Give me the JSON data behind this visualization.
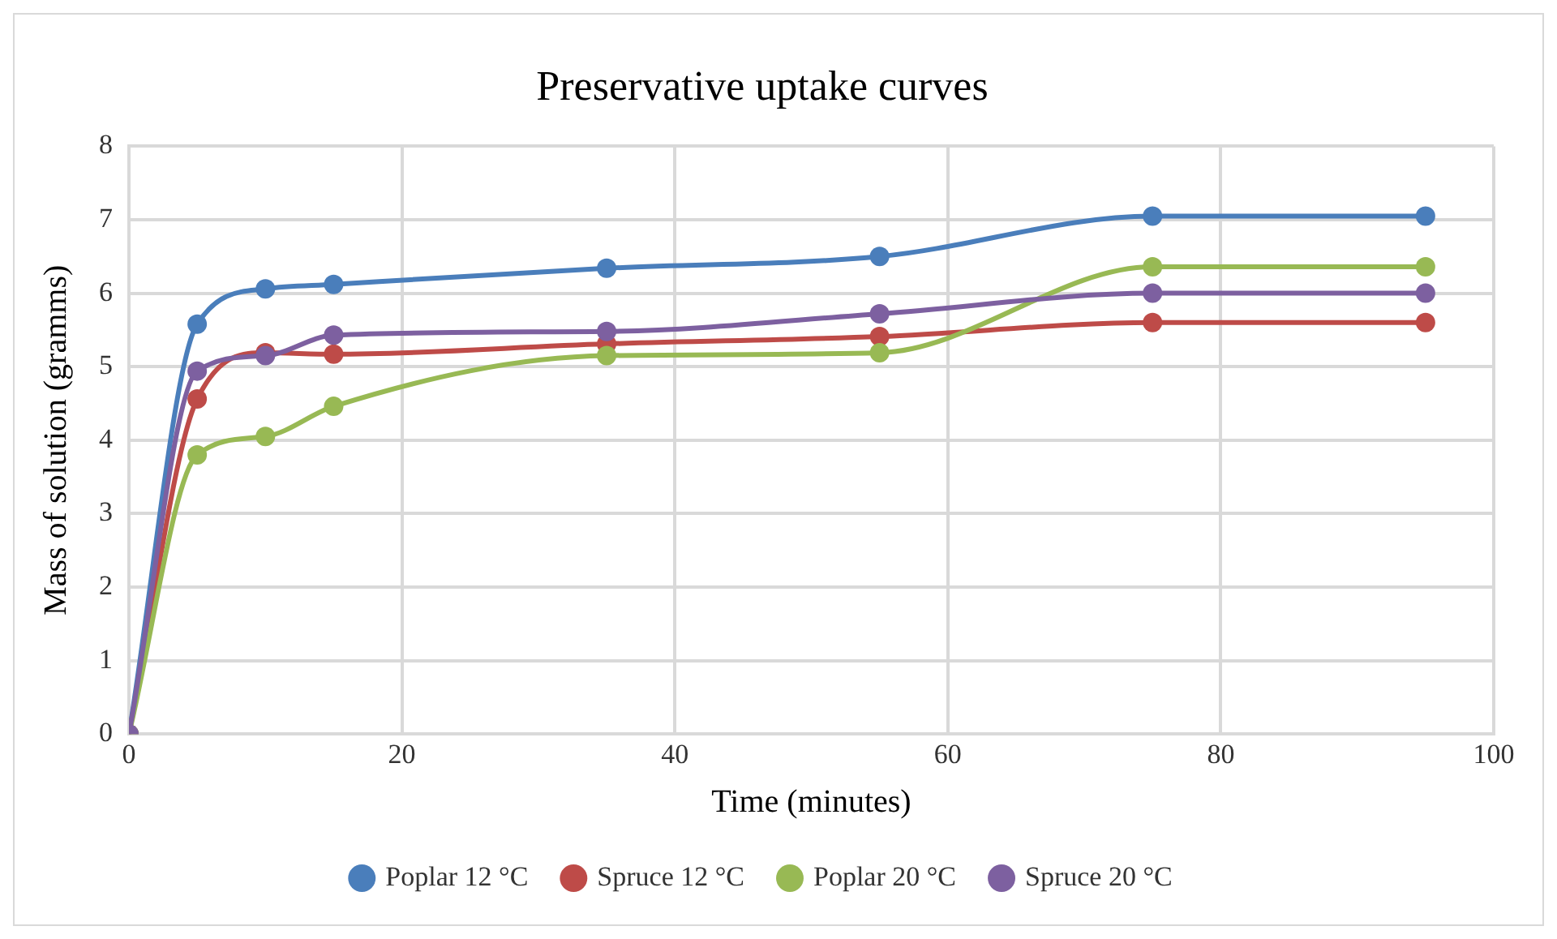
{
  "chart_data": {
    "type": "line",
    "title": "Preservative uptake curves",
    "xlabel": "Time (minutes)",
    "ylabel": "Mass of solution (gramms)",
    "x": [
      0,
      5,
      10,
      15,
      35,
      55,
      75,
      95
    ],
    "series": [
      {
        "name": "Poplar 12 °C",
        "color": "#4a7ebb",
        "values": [
          0,
          5.58,
          6.06,
          6.12,
          6.34,
          6.5,
          7.05,
          7.05
        ]
      },
      {
        "name": "Spruce 12 °C",
        "color": "#be4b48",
        "values": [
          0,
          4.56,
          5.19,
          5.17,
          5.31,
          5.41,
          5.6,
          5.6
        ]
      },
      {
        "name": "Poplar 20 °C",
        "color": "#98b954",
        "values": [
          0,
          3.8,
          4.05,
          4.46,
          5.15,
          5.19,
          6.36,
          6.36
        ]
      },
      {
        "name": "Spruce 20 °C",
        "color": "#7d60a0",
        "values": [
          0,
          4.94,
          5.15,
          5.43,
          5.48,
          5.72,
          6.0,
          6.0
        ]
      }
    ],
    "xlim": [
      0,
      100
    ],
    "xticks": [
      0,
      20,
      40,
      60,
      80,
      100
    ],
    "ylim": [
      0,
      8
    ],
    "yticks": [
      0,
      1,
      2,
      3,
      4,
      5,
      6,
      7,
      8
    ],
    "grid": true,
    "legend": "bottom",
    "marker": "circle",
    "line_style": "solid"
  }
}
